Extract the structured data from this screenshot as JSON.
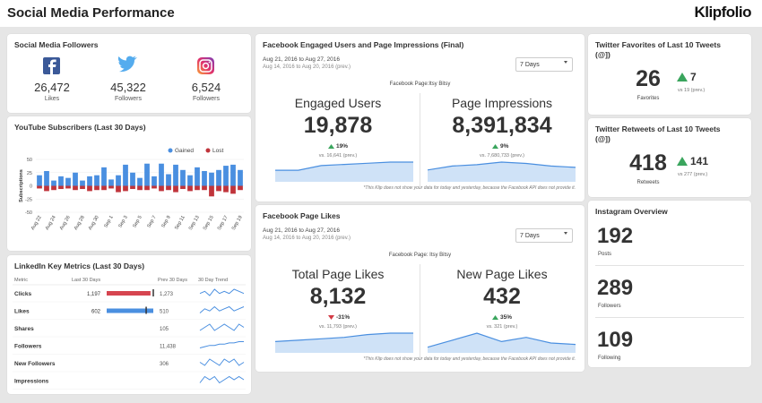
{
  "header": {
    "title": "Social Media Performance",
    "logo": "Klipfolio"
  },
  "followers": {
    "title": "Social Media Followers",
    "items": [
      {
        "value": "26,472",
        "label": "Likes"
      },
      {
        "value": "45,322",
        "label": "Followers"
      },
      {
        "value": "6,524",
        "label": "Followers"
      }
    ]
  },
  "youtube": {
    "title": "YouTube Subscribers (Last 30 Days)",
    "y_label": "Subscriptions",
    "categories": [
      "Aug 22",
      null,
      "Aug 24",
      null,
      "Aug 26",
      null,
      "Aug 28",
      null,
      "Aug 30",
      null,
      "Sep 1",
      null,
      "Sep 3",
      null,
      "Sep 5",
      null,
      "Sep 7",
      null,
      "Sep 9",
      null,
      "Sep 11",
      null,
      "Sep 13",
      null,
      "Sep 15",
      null,
      "Sep 17",
      null,
      "Sep 19"
    ],
    "series": [
      {
        "name": "Gained",
        "color": "#4a8fe0",
        "values": [
          20,
          28,
          10,
          18,
          15,
          25,
          10,
          18,
          20,
          35,
          12,
          20,
          40,
          25,
          15,
          42,
          18,
          42,
          22,
          40,
          30,
          20,
          35,
          28,
          25,
          30,
          38,
          40,
          30
        ]
      },
      {
        "name": "Lost",
        "color": "#c0343b",
        "values": [
          -5,
          -10,
          -8,
          -6,
          -5,
          -8,
          -6,
          -10,
          -8,
          -8,
          -5,
          -12,
          -10,
          -6,
          -8,
          -8,
          -5,
          -10,
          -8,
          -12,
          -6,
          -10,
          -8,
          -8,
          -20,
          -10,
          -12,
          -15,
          -8
        ]
      }
    ],
    "ylim": [
      -50,
      50
    ],
    "yticks": [
      -50,
      -25,
      0,
      25,
      50
    ]
  },
  "linkedin": {
    "title": "LinkedIn Key Metrics (Last 30 Days)",
    "columns": [
      "Metric",
      "Last 30 Days",
      "Prev 30 Days",
      "30 Day Trend"
    ],
    "rows": [
      {
        "metric": "Clicks",
        "current": "1,197",
        "previous": "1,273",
        "trend": [
          5,
          6,
          4,
          7,
          5,
          6,
          5,
          7,
          6,
          5
        ]
      },
      {
        "metric": "Likes",
        "current": "602",
        "previous": "510",
        "trend": [
          3,
          5,
          4,
          6,
          4,
          5,
          6,
          4,
          5,
          6
        ]
      },
      {
        "metric": "Shares",
        "current": null,
        "previous": "105",
        "trend": [
          4,
          5,
          6,
          4,
          5,
          6,
          5,
          4,
          6,
          5
        ]
      },
      {
        "metric": "Followers",
        "current": null,
        "previous": "11,438",
        "trend": [
          3,
          4,
          5,
          5,
          6,
          6,
          7,
          7,
          8,
          8
        ]
      },
      {
        "metric": "New Followers",
        "current": null,
        "previous": "306",
        "trend": [
          5,
          4,
          6,
          5,
          4,
          6,
          5,
          6,
          4,
          5
        ]
      },
      {
        "metric": "Impressions",
        "current": null,
        "previous": null,
        "trend": [
          4,
          6,
          5,
          6,
          4,
          5,
          6,
          5,
          6,
          5
        ]
      }
    ]
  },
  "facebook_engagement": {
    "title": "Facebook Engaged Users and Page Impressions (Final)",
    "date_range": "Aug 21, 2016 to Aug 27, 2016",
    "prev_range": "Aug 14, 2016 to Aug 20, 2016 (prev.)",
    "period": "7 Days",
    "page": "Facebook Page:Itsy Bitsy",
    "metrics": [
      {
        "label": "Engaged Users",
        "value": "19,878",
        "change": "19%",
        "direction": "up",
        "prev": "vs. 16,641 (prev.)",
        "trend": [
          10,
          10,
          14,
          15,
          16,
          17,
          17
        ]
      },
      {
        "label": "Page Impressions",
        "value": "8,391,834",
        "change": "9%",
        "direction": "up",
        "prev": "vs. 7,680,733 (prev.)",
        "trend": [
          9,
          12,
          13,
          15,
          14,
          12,
          11
        ]
      }
    ],
    "footnote": "*This Klip does not show your data for today and yesterday, because the Facebook API does not provide it."
  },
  "facebook_likes": {
    "title": "Facebook Page Likes",
    "date_range": "Aug 21, 2016 to Aug 27, 2016",
    "prev_range": "Aug 14, 2016 to Aug 20, 2016 (prev.)",
    "period": "7 Days",
    "page": "Facebook Page: Itsy Bitsy",
    "metrics": [
      {
        "label": "Total Page Likes",
        "value": "8,132",
        "change": "-31%",
        "direction": "down",
        "prev": "vs. 11,793 (prev.)",
        "trend": [
          8,
          9,
          10,
          11,
          13,
          14,
          14
        ]
      },
      {
        "label": "New Page Likes",
        "value": "432",
        "change": "35%",
        "direction": "up",
        "prev": "vs. 321 (prev.)",
        "trend": [
          4,
          9,
          14,
          8,
          11,
          7,
          6
        ]
      }
    ],
    "footnote": "*This Klip does not show your data for today and yesterday, because the Facebook API does not provide it."
  },
  "twitter_favorites": {
    "title": "Twitter Favorites of Last 10 Tweets (@])",
    "value": "26",
    "label": "Favorites",
    "change": "7",
    "prev": "vs 19 (prev.)"
  },
  "twitter_retweets": {
    "title": "Twitter Retweets of Last 10 Tweets (@])",
    "value": "418",
    "label": "Retweets",
    "change": "141",
    "prev": "vs 277 (prev.)"
  },
  "instagram": {
    "title": "Instagram Overview",
    "items": [
      {
        "value": "192",
        "label": "Posts"
      },
      {
        "value": "289",
        "label": "Followers"
      },
      {
        "value": "109",
        "label": "Following"
      }
    ]
  }
}
